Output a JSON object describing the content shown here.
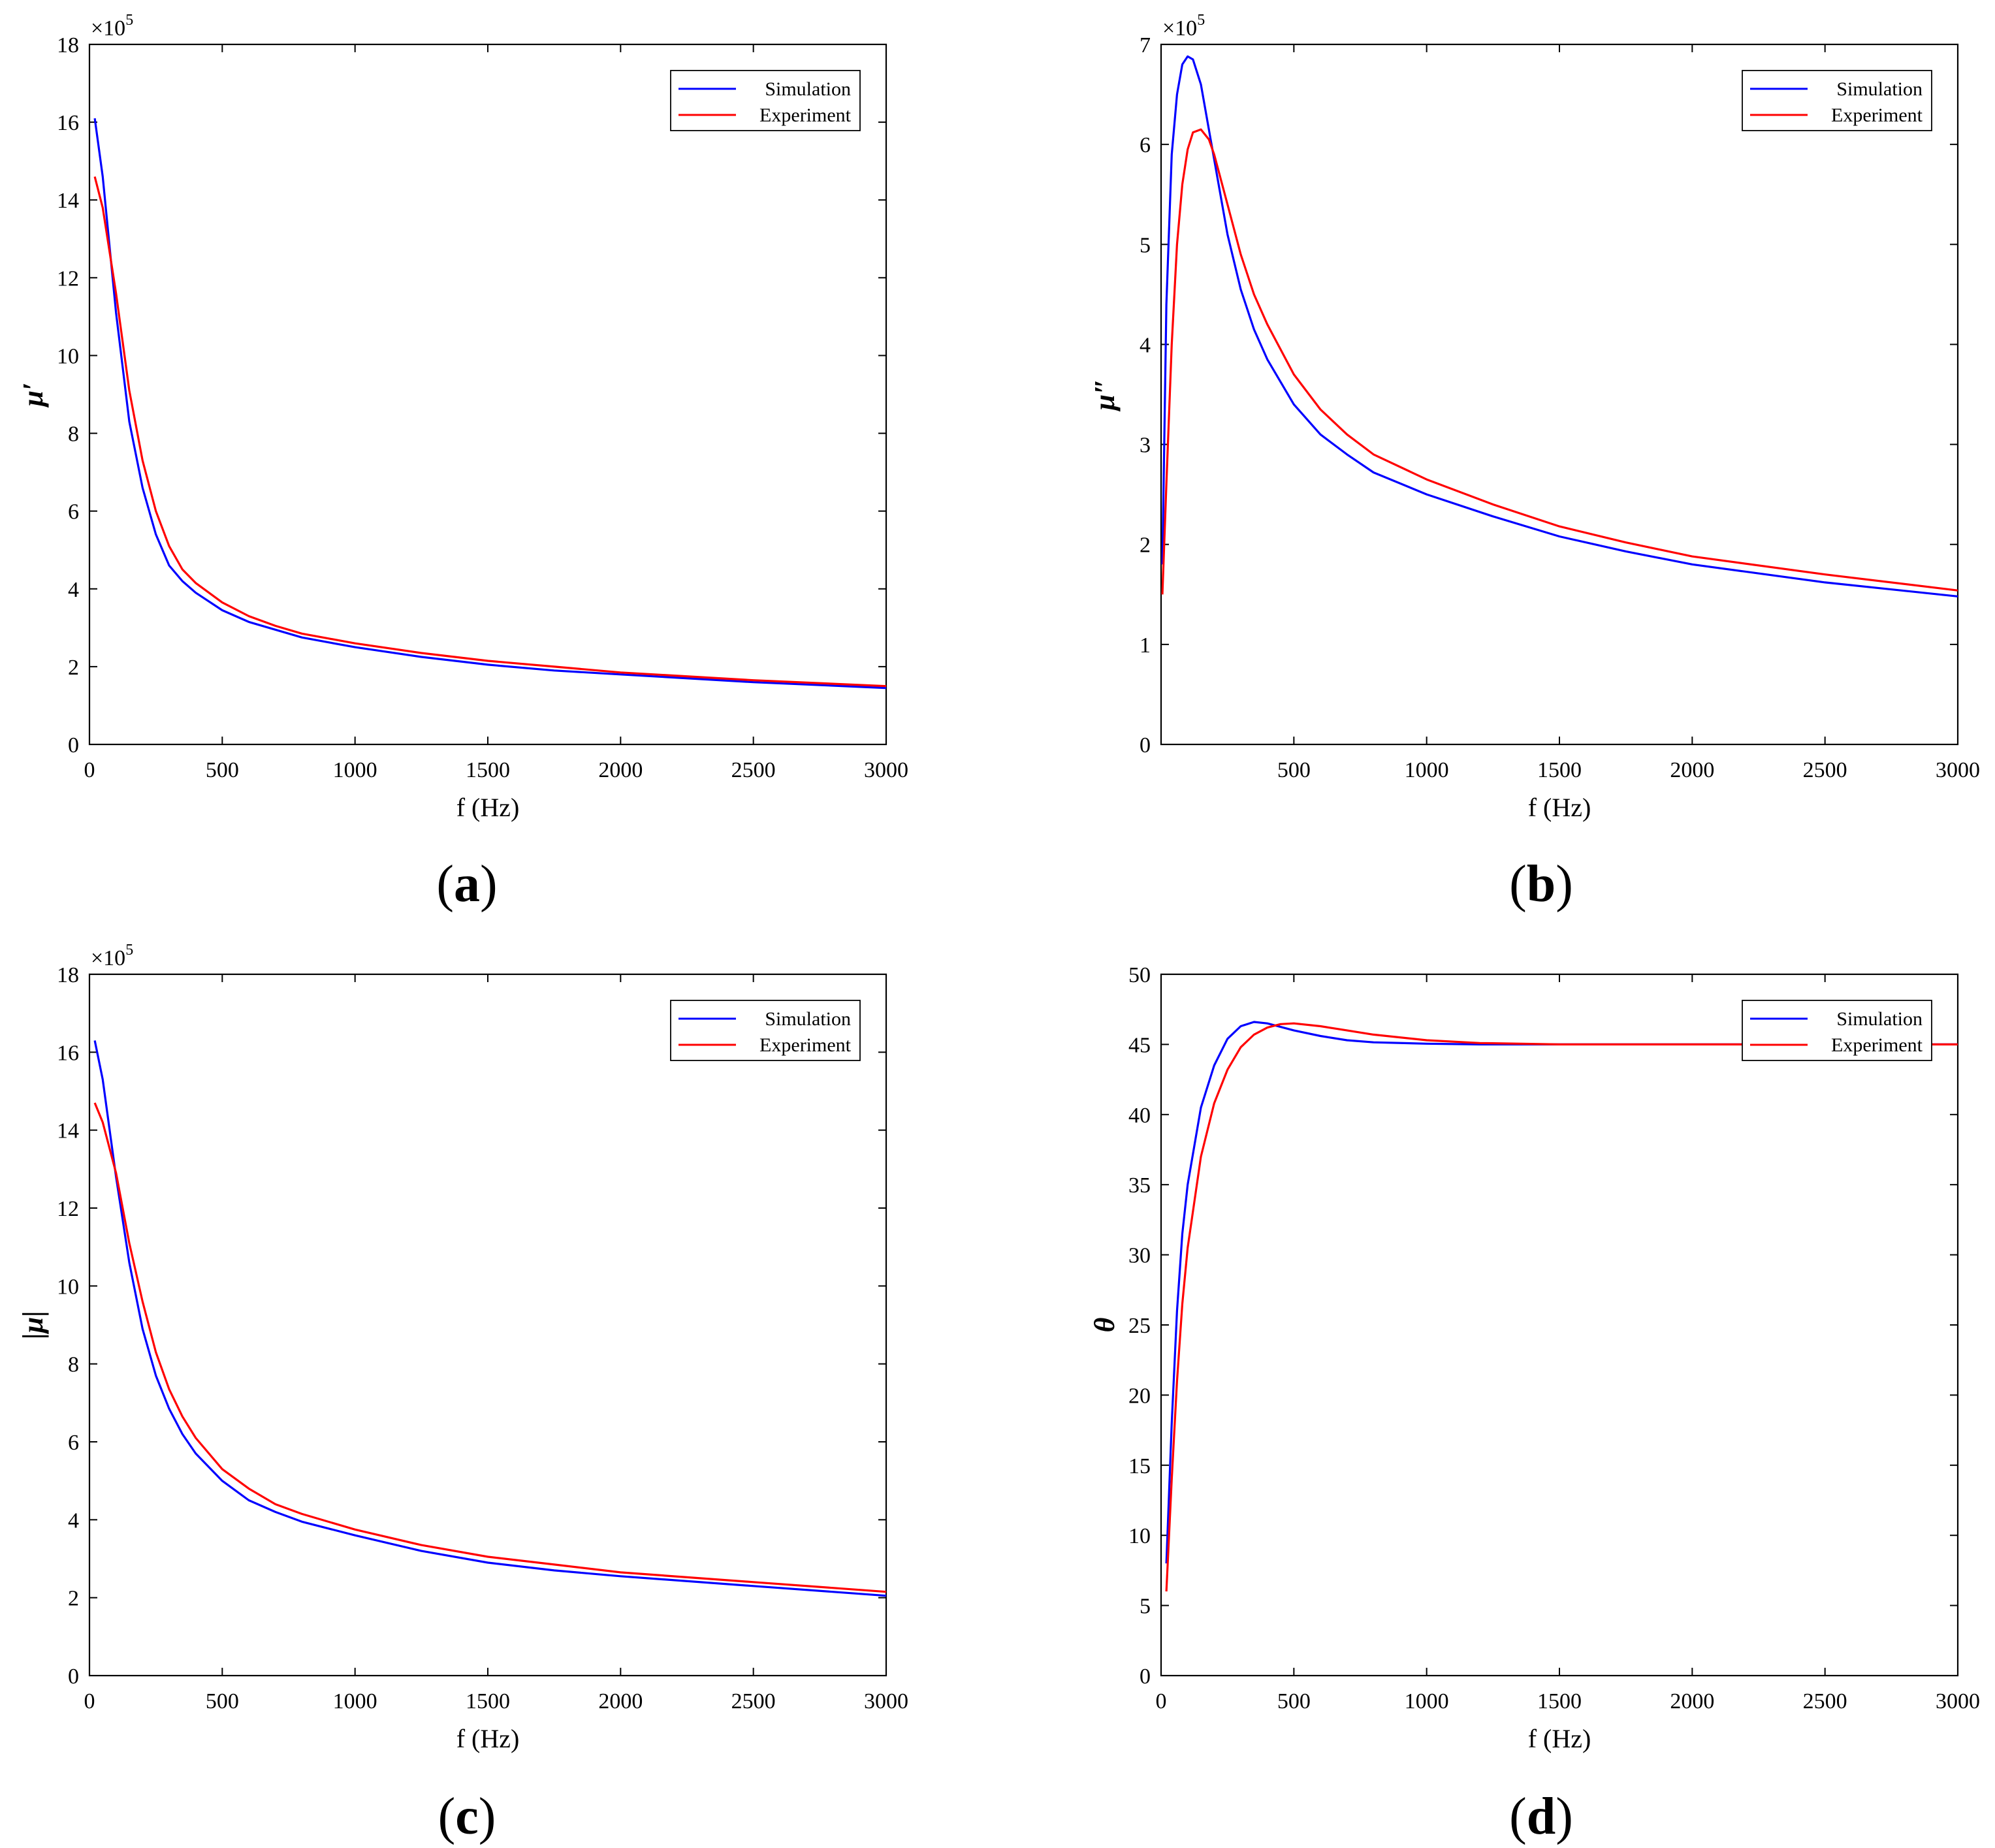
{
  "chart_data": [
    {
      "panel": "(a)",
      "panel_letter": "a",
      "type": "line",
      "xlabel": "f (Hz)",
      "ylabel": "μ′",
      "y_multiplier": "×10",
      "y_multiplier_exp": "5",
      "xlim": [
        0,
        3000
      ],
      "ylim": [
        0,
        18
      ],
      "xticks": [
        0,
        500,
        1000,
        1500,
        2000,
        2500,
        3000
      ],
      "xtick_labels": [
        "0",
        "500",
        "1000",
        "1500",
        "2000",
        "2500",
        "3000"
      ],
      "yticks": [
        0,
        2,
        4,
        6,
        8,
        10,
        12,
        14,
        16,
        18
      ],
      "ytick_labels": [
        "0",
        "2",
        "4",
        "6",
        "8",
        "10",
        "12",
        "14",
        "16",
        "18"
      ],
      "legend_position": "top-right",
      "series": [
        {
          "name": "Simulation",
          "color": "#0000ff",
          "x": [
            20,
            50,
            100,
            150,
            200,
            250,
            300,
            350,
            400,
            500,
            600,
            700,
            800,
            1000,
            1250,
            1500,
            1750,
            2000,
            2500,
            3000
          ],
          "y": [
            16.1,
            14.6,
            11.1,
            8.3,
            6.6,
            5.4,
            4.6,
            4.2,
            3.9,
            3.45,
            3.15,
            2.95,
            2.75,
            2.5,
            2.25,
            2.05,
            1.9,
            1.8,
            1.6,
            1.45
          ]
        },
        {
          "name": "Experiment",
          "color": "#ff0000",
          "x": [
            20,
            50,
            100,
            150,
            200,
            250,
            300,
            350,
            400,
            500,
            600,
            700,
            800,
            1000,
            1250,
            1500,
            1750,
            2000,
            2500,
            3000
          ],
          "y": [
            14.6,
            13.8,
            11.6,
            9.1,
            7.3,
            6.0,
            5.1,
            4.5,
            4.15,
            3.65,
            3.3,
            3.05,
            2.85,
            2.6,
            2.35,
            2.15,
            2.0,
            1.85,
            1.65,
            1.5
          ]
        }
      ]
    },
    {
      "panel": "(b)",
      "panel_letter": "b",
      "type": "line",
      "xlabel": "f (Hz)",
      "ylabel": "μ″",
      "y_multiplier": "×10",
      "y_multiplier_exp": "5",
      "xlim": [
        0,
        3000
      ],
      "ylim": [
        0,
        7
      ],
      "xticks": [
        500,
        1000,
        1500,
        2000,
        2500,
        3000
      ],
      "xtick_labels": [
        "500",
        "1000",
        "1500",
        "2000",
        "2500",
        "3000"
      ],
      "yticks": [
        0,
        1,
        2,
        3,
        4,
        5,
        6,
        7
      ],
      "ytick_labels": [
        "0",
        "1",
        "2",
        "3",
        "4",
        "5",
        "6",
        "7"
      ],
      "legend_position": "top-right",
      "series": [
        {
          "name": "Simulation",
          "color": "#0000ff",
          "x": [
            5,
            20,
            40,
            60,
            80,
            100,
            120,
            150,
            200,
            250,
            300,
            350,
            400,
            500,
            600,
            700,
            800,
            1000,
            1250,
            1500,
            1750,
            2000,
            2500,
            3000
          ],
          "y": [
            1.8,
            4.4,
            5.9,
            6.5,
            6.8,
            6.88,
            6.85,
            6.6,
            5.85,
            5.1,
            4.55,
            4.15,
            3.85,
            3.4,
            3.1,
            2.9,
            2.72,
            2.5,
            2.28,
            2.08,
            1.93,
            1.8,
            1.62,
            1.48
          ]
        },
        {
          "name": "Experiment",
          "color": "#ff0000",
          "x": [
            5,
            20,
            40,
            60,
            80,
            100,
            120,
            150,
            180,
            200,
            250,
            300,
            350,
            400,
            500,
            600,
            700,
            800,
            1000,
            1250,
            1500,
            1750,
            2000,
            2500,
            3000
          ],
          "y": [
            1.5,
            2.6,
            4.0,
            5.0,
            5.6,
            5.95,
            6.12,
            6.15,
            6.05,
            5.9,
            5.4,
            4.9,
            4.5,
            4.2,
            3.7,
            3.35,
            3.1,
            2.9,
            2.65,
            2.4,
            2.18,
            2.02,
            1.88,
            1.7,
            1.54
          ]
        }
      ]
    },
    {
      "panel": "(c)",
      "panel_letter": "c",
      "type": "line",
      "xlabel": "f (Hz)",
      "ylabel": "|μ|",
      "y_multiplier": "×10",
      "y_multiplier_exp": "5",
      "xlim": [
        0,
        3000
      ],
      "ylim": [
        0,
        18
      ],
      "xticks": [
        0,
        500,
        1000,
        1500,
        2000,
        2500,
        3000
      ],
      "xtick_labels": [
        "0",
        "500",
        "1000",
        "1500",
        "2000",
        "2500",
        "3000"
      ],
      "yticks": [
        0,
        2,
        4,
        6,
        8,
        10,
        12,
        14,
        16,
        18
      ],
      "ytick_labels": [
        "0",
        "2",
        "4",
        "6",
        "8",
        "10",
        "12",
        "14",
        "16",
        "18"
      ],
      "legend_position": "top-right",
      "series": [
        {
          "name": "Simulation",
          "color": "#0000ff",
          "x": [
            20,
            50,
            100,
            150,
            200,
            250,
            300,
            350,
            400,
            500,
            600,
            700,
            800,
            1000,
            1250,
            1500,
            1750,
            2000,
            2500,
            3000
          ],
          "y": [
            16.3,
            15.3,
            12.8,
            10.6,
            8.9,
            7.7,
            6.85,
            6.2,
            5.7,
            5.0,
            4.5,
            4.2,
            3.95,
            3.6,
            3.2,
            2.9,
            2.7,
            2.55,
            2.3,
            2.05
          ]
        },
        {
          "name": "Experiment",
          "color": "#ff0000",
          "x": [
            20,
            50,
            100,
            150,
            200,
            250,
            300,
            350,
            400,
            500,
            600,
            700,
            800,
            1000,
            1250,
            1500,
            1750,
            2000,
            2500,
            3000
          ],
          "y": [
            14.7,
            14.2,
            12.9,
            11.1,
            9.6,
            8.3,
            7.35,
            6.65,
            6.1,
            5.3,
            4.8,
            4.4,
            4.15,
            3.75,
            3.35,
            3.05,
            2.85,
            2.65,
            2.4,
            2.15
          ]
        }
      ]
    },
    {
      "panel": "(d)",
      "panel_letter": "d",
      "type": "line",
      "xlabel": "f (Hz)",
      "ylabel": "θ",
      "xlim": [
        0,
        3000
      ],
      "ylim": [
        0,
        50
      ],
      "xticks": [
        0,
        500,
        1000,
        1500,
        2000,
        2500,
        3000
      ],
      "xtick_labels": [
        "0",
        "500",
        "1000",
        "1500",
        "2000",
        "2500",
        "3000"
      ],
      "yticks": [
        0,
        5,
        10,
        15,
        20,
        25,
        30,
        35,
        40,
        45,
        50
      ],
      "ytick_labels": [
        "0",
        "5",
        "10",
        "15",
        "20",
        "25",
        "30",
        "35",
        "40",
        "45",
        "50"
      ],
      "legend_position": "top-right",
      "series": [
        {
          "name": "Simulation",
          "color": "#0000ff",
          "x": [
            20,
            40,
            60,
            80,
            100,
            150,
            200,
            250,
            300,
            350,
            400,
            500,
            600,
            700,
            800,
            1000,
            1200,
            1500,
            2000,
            2500,
            3000
          ],
          "y": [
            8,
            18,
            26,
            31.5,
            35,
            40.5,
            43.5,
            45.4,
            46.3,
            46.6,
            46.5,
            46.0,
            45.6,
            45.3,
            45.15,
            45.05,
            45.0,
            45.0,
            45.0,
            45.0,
            45.0
          ]
        },
        {
          "name": "Experiment",
          "color": "#ff0000",
          "x": [
            20,
            40,
            60,
            80,
            100,
            150,
            200,
            250,
            300,
            350,
            400,
            450,
            500,
            600,
            700,
            800,
            1000,
            1200,
            1500,
            2000,
            2500,
            3000
          ],
          "y": [
            6,
            14,
            21,
            26.5,
            30.5,
            37,
            40.8,
            43.2,
            44.8,
            45.7,
            46.2,
            46.45,
            46.5,
            46.3,
            46.0,
            45.7,
            45.3,
            45.1,
            45.0,
            45.0,
            45.0,
            45.0
          ]
        }
      ]
    }
  ]
}
